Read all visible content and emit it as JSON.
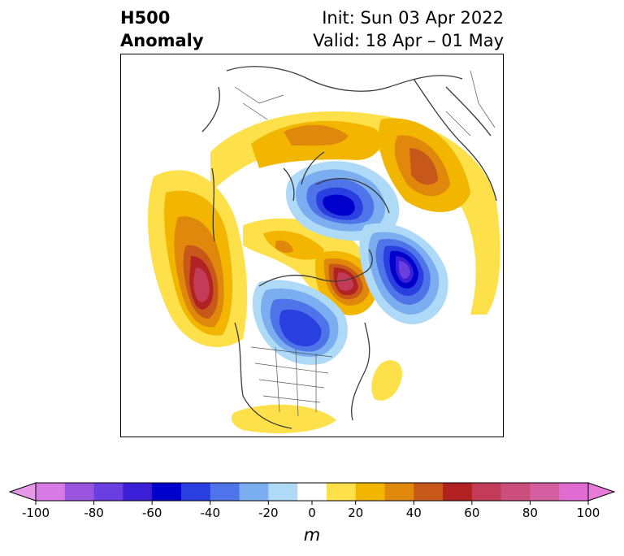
{
  "title": {
    "line1": "H500",
    "line2": "Anomaly",
    "init": "Init: Sun 03 Apr 2022",
    "valid": "Valid: 18 Apr – 01 May"
  },
  "colorbar": {
    "levels": [
      -100,
      -90,
      -80,
      -70,
      -60,
      -50,
      -40,
      -30,
      -20,
      -10,
      10,
      20,
      30,
      40,
      50,
      60,
      70,
      80,
      90,
      100
    ],
    "colors": [
      "#d77ae6",
      "#9a55e0",
      "#6a3ee0",
      "#3a1fd6",
      "#0000cc",
      "#2a3fe0",
      "#4f73e8",
      "#7aaef0",
      "#aedaf7",
      "#ffffff",
      "#fde04a",
      "#f3b600",
      "#e0880c",
      "#c8581a",
      "#b22222",
      "#c23c5a",
      "#cc4e7a",
      "#d45ea0",
      "#e06cd2"
    ],
    "under_color": "#e59ae8",
    "over_color": "#e87ad8",
    "ticks": [
      "-100",
      "-80",
      "-60",
      "-40",
      "-20",
      "0",
      "20",
      "40",
      "60",
      "80",
      "100"
    ],
    "units": "m"
  }
}
